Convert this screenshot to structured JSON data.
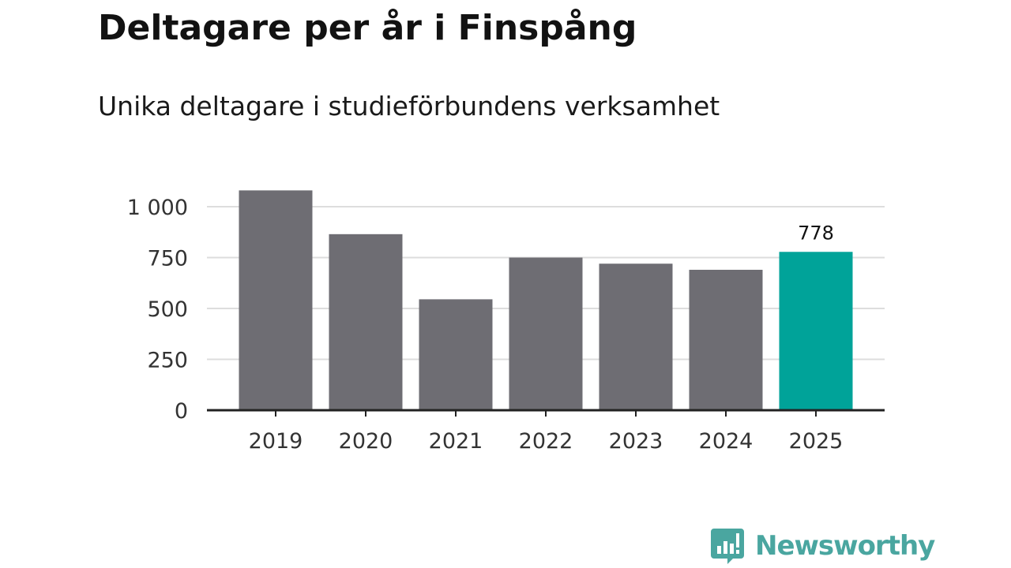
{
  "header": {
    "title": "Deltagare per år i Finspång",
    "subtitle": "Unika deltagare i studieförbundens verksamhet"
  },
  "brand": {
    "name": "Newsworthy",
    "icon": "newsworthy-logo-icon",
    "color": "#4aa6a0"
  },
  "colors": {
    "bar": "#6e6d73",
    "highlight": "#00a399",
    "gridline": "#dddddd",
    "axis": "#222222"
  },
  "chart_data": {
    "type": "bar",
    "title": "Deltagare per år i Finspång",
    "subtitle": "Unika deltagare i studieförbundens verksamhet",
    "categories": [
      "2019",
      "2020",
      "2021",
      "2022",
      "2023",
      "2024",
      "2025"
    ],
    "values": [
      1080,
      865,
      545,
      750,
      720,
      690,
      778
    ],
    "highlight_index": 6,
    "data_labels": [
      {
        "index": 6,
        "text": "778"
      }
    ],
    "ylim": [
      0,
      1100
    ],
    "y_ticks": [
      {
        "value": 0,
        "label": "0"
      },
      {
        "value": 250,
        "label": "250"
      },
      {
        "value": 500,
        "label": "500"
      },
      {
        "value": 750,
        "label": "750"
      },
      {
        "value": 1000,
        "label": "1 000"
      }
    ],
    "xlabel": "",
    "ylabel": "",
    "grid": true,
    "legend": "none"
  }
}
